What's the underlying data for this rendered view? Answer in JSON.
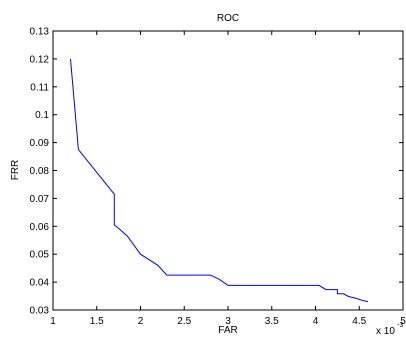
{
  "chart_data": {
    "type": "line",
    "title": "ROC",
    "xlabel": "FAR",
    "ylabel": "FRR",
    "x_multiplier": "x 10",
    "x_multiplier_exponent": "-3",
    "xlim": [
      1,
      5
    ],
    "ylim": [
      0.03,
      0.13
    ],
    "xticks": [
      1,
      1.5,
      2,
      2.5,
      3,
      3.5,
      4,
      4.5,
      5
    ],
    "xtick_labels": [
      "1",
      "1.5",
      "2",
      "2.5",
      "3",
      "3.5",
      "4",
      "4.5",
      "5"
    ],
    "yticks": [
      0.03,
      0.04,
      0.05,
      0.06,
      0.07,
      0.08,
      0.09,
      0.1,
      0.11,
      0.12,
      0.13
    ],
    "ytick_labels": [
      "0.03",
      "0.04",
      "0.05",
      "0.06",
      "0.07",
      "0.08",
      "0.09",
      "0.1",
      "0.11",
      "0.12",
      "0.13"
    ],
    "grid": false,
    "series": [
      {
        "color": "#0000ff",
        "x": [
          1.2,
          1.29,
          1.7,
          1.7,
          1.76,
          1.85,
          2.0,
          2.1,
          2.2,
          2.3,
          2.8,
          2.9,
          3.0,
          4.04,
          4.12,
          4.2,
          4.25,
          4.25,
          4.32,
          4.38,
          4.45,
          4.55,
          4.6
        ],
        "y": [
          0.12,
          0.0875,
          0.0715,
          0.0605,
          0.059,
          0.0565,
          0.05,
          0.048,
          0.046,
          0.0425,
          0.0425,
          0.041,
          0.0388,
          0.0388,
          0.0373,
          0.0373,
          0.0373,
          0.0358,
          0.0358,
          0.0348,
          0.0343,
          0.0333,
          0.033
        ]
      }
    ]
  }
}
